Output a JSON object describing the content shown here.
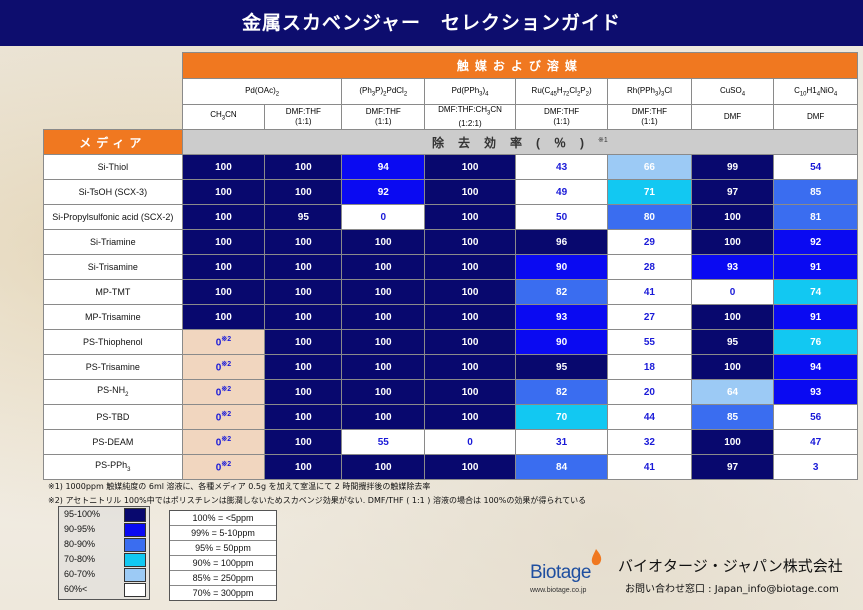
{
  "title": "金属スカベンジャー　セレクションガイド",
  "header": {
    "catalyst_group": "触媒および溶媒",
    "media": "メディア",
    "removal": "除去効率",
    "removal_unit": "(％)",
    "removal_note": "※1"
  },
  "catalysts": [
    {
      "name": "Pd(OAc)",
      "sub": "2",
      "suffix": "",
      "span": 2
    },
    {
      "name": "(Ph",
      "sub": "3",
      "mid": "P)",
      "sub2": "2",
      "suffix": "PdCl",
      "sub3": "2",
      "span": 1
    },
    {
      "name": "Pd(PPh",
      "sub": "3",
      "suffix": ")",
      "sub3": "4",
      "span": 1
    },
    {
      "name": "Ru(C",
      "sub": "45",
      "mid": "H",
      "sub2": "72",
      "suffix": "Cl",
      "sub3": "2",
      "tail": "P",
      "sub4": "2",
      "end": ")",
      "span": 1
    },
    {
      "name": "Rh(PPh",
      "sub": "3",
      "suffix": ")",
      "sub3": "3",
      "tail": "Cl",
      "span": 1
    },
    {
      "name": "CuSO",
      "sub": "4",
      "suffix": "",
      "span": 1
    },
    {
      "name": "C",
      "sub": "10",
      "mid": "H1",
      "sub2": "4",
      "suffix": "NiO",
      "sub3": "4",
      "span": 1
    }
  ],
  "solvents": [
    {
      "line1": "CH",
      "sub": "3",
      "line1b": "CN",
      "line2": ""
    },
    {
      "line1": "DMF:THF",
      "line2": "(1:1)"
    },
    {
      "line1": "DMF:THF",
      "line2": "(1:1)"
    },
    {
      "line1": "DMF:THF:CH",
      "sub": "3",
      "line1b": "CN",
      "line2": "(1:2:1)"
    },
    {
      "line1": "DMF:THF",
      "line2": "(1:1)"
    },
    {
      "line1": "DMF:THF",
      "line2": "(1:1)"
    },
    {
      "line1": "DMF",
      "line2": ""
    },
    {
      "line1": "DMF",
      "line2": ""
    }
  ],
  "rows": [
    {
      "media": "Si-Thiol",
      "values": [
        "100",
        "100",
        "94",
        "100",
        "43",
        "66",
        "99",
        "54"
      ]
    },
    {
      "media": "Si-TsOH (SCX-3)",
      "values": [
        "100",
        "100",
        "92",
        "100",
        "49",
        "71",
        "97",
        "85"
      ]
    },
    {
      "media": "Si-Propylsulfonic acid (SCX-2)",
      "values": [
        "100",
        "95",
        "0",
        "100",
        "50",
        "80",
        "100",
        "81"
      ]
    },
    {
      "media": "Si-Triamine",
      "values": [
        "100",
        "100",
        "100",
        "100",
        "96",
        "29",
        "100",
        "92"
      ]
    },
    {
      "media": "Si-Trisamine",
      "values": [
        "100",
        "100",
        "100",
        "100",
        "90",
        "28",
        "93",
        "91"
      ]
    },
    {
      "media": "MP-TMT",
      "values": [
        "100",
        "100",
        "100",
        "100",
        "82",
        "41",
        "0",
        "74"
      ]
    },
    {
      "media": "MP-Trisamine",
      "values": [
        "100",
        "100",
        "100",
        "100",
        "93",
        "27",
        "100",
        "91"
      ]
    },
    {
      "media": "PS-Thiophenol",
      "values": [
        "0",
        "100",
        "100",
        "100",
        "90",
        "55",
        "95",
        "76"
      ]
    },
    {
      "media": "PS-Trisamine",
      "values": [
        "0",
        "100",
        "100",
        "100",
        "95",
        "18",
        "100",
        "94"
      ]
    },
    {
      "media": "PS-NH",
      "media_sub": "2",
      "values": [
        "0",
        "100",
        "100",
        "100",
        "82",
        "20",
        "64",
        "93"
      ]
    },
    {
      "media": "PS-TBD",
      "values": [
        "0",
        "100",
        "100",
        "100",
        "70",
        "44",
        "85",
        "56"
      ]
    },
    {
      "media": "PS-DEAM",
      "values": [
        "0",
        "100",
        "55",
        "0",
        "31",
        "32",
        "100",
        "47"
      ]
    },
    {
      "media": "PS-PPh",
      "media_sub": "3",
      "values": [
        "0",
        "100",
        "100",
        "100",
        "84",
        "41",
        "97",
        "3"
      ]
    }
  ],
  "zero_note": "※2",
  "footnotes": [
    "※1) 1000ppm 触媒純度の 6ml 溶液に、各種メディア 0.5g を加えて室温にて 2 時間攪拌後の触媒除去率",
    "※2) アセトニトリル 100%中ではポリスチレンは膨潤しないためスカベンジ効果がない. DMF/THF ( 1:1 ) 溶液の場合は 100%の効果が得られている"
  ],
  "legend": [
    {
      "label": "95-100%",
      "color": "#08086e"
    },
    {
      "label": "90-95%",
      "color": "#0a0af2"
    },
    {
      "label": "80-90%",
      "color": "#3a6df0"
    },
    {
      "label": "70-80%",
      "color": "#12c8f2"
    },
    {
      "label": "60-70%",
      "color": "#9ccaf5"
    },
    {
      "label": "60%<",
      "color": "#ffffff"
    }
  ],
  "ppm_table": [
    "100% = <5ppm",
    "99% = 5-10ppm",
    "95% = 50ppm",
    "90% = 100ppm",
    "85% = 250ppm",
    "70% = 300ppm"
  ],
  "footer": {
    "logo": "Biotage",
    "url": "www.biotage.co.jp",
    "company": "バイオタージ・ジャパン株式会社",
    "contact": "お問い合わせ窓口 : Japan_info@biotage.com"
  }
}
